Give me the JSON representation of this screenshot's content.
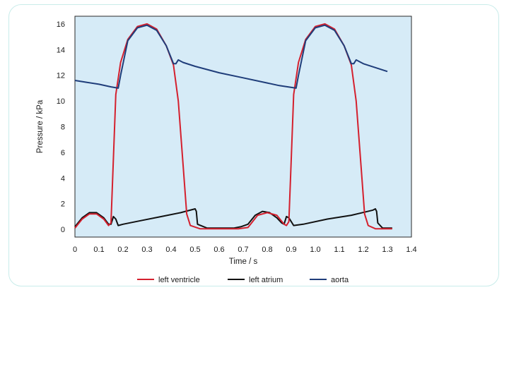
{
  "chart_data": {
    "type": "line",
    "xlabel": "Time / s",
    "ylabel": "Pressure / kPa",
    "xlim": [
      0,
      1.4
    ],
    "ylim": [
      -0.6,
      16.6
    ],
    "xticks": [
      "0",
      "0.1",
      "0.2",
      "0.3",
      "0.4",
      "0.5",
      "0.6",
      "0.7",
      "0.8",
      "0.9",
      "1.0",
      "1.1",
      "1.2",
      "1.3",
      "1.4"
    ],
    "yticks": [
      "0",
      "2",
      "4",
      "6",
      "8",
      "10",
      "12",
      "14",
      "16"
    ],
    "background": "#d6ebf7",
    "legend_position": "bottom",
    "series": [
      {
        "name": "left ventricle",
        "color": "#d4202e",
        "points": [
          [
            0.0,
            0.1
          ],
          [
            0.03,
            0.8
          ],
          [
            0.06,
            1.2
          ],
          [
            0.09,
            1.2
          ],
          [
            0.12,
            0.8
          ],
          [
            0.14,
            0.3
          ],
          [
            0.15,
            0.5
          ],
          [
            0.16,
            5.5
          ],
          [
            0.17,
            10.5
          ],
          [
            0.19,
            13.0
          ],
          [
            0.22,
            14.8
          ],
          [
            0.26,
            15.8
          ],
          [
            0.3,
            16.0
          ],
          [
            0.34,
            15.6
          ],
          [
            0.38,
            14.3
          ],
          [
            0.41,
            12.8
          ],
          [
            0.43,
            10.0
          ],
          [
            0.45,
            5.0
          ],
          [
            0.465,
            1.2
          ],
          [
            0.48,
            0.3
          ],
          [
            0.52,
            0.05
          ],
          [
            0.6,
            0.05
          ],
          [
            0.68,
            0.05
          ],
          [
            0.72,
            0.15
          ],
          [
            0.76,
            1.1
          ],
          [
            0.8,
            1.3
          ],
          [
            0.84,
            1.1
          ],
          [
            0.87,
            0.4
          ],
          [
            0.88,
            0.3
          ],
          [
            0.89,
            0.6
          ],
          [
            0.9,
            5.5
          ],
          [
            0.91,
            10.5
          ],
          [
            0.93,
            13.0
          ],
          [
            0.96,
            14.8
          ],
          [
            1.0,
            15.8
          ],
          [
            1.04,
            16.0
          ],
          [
            1.08,
            15.6
          ],
          [
            1.12,
            14.3
          ],
          [
            1.15,
            12.8
          ],
          [
            1.17,
            10.0
          ],
          [
            1.19,
            5.0
          ],
          [
            1.205,
            1.2
          ],
          [
            1.22,
            0.3
          ],
          [
            1.25,
            0.05
          ],
          [
            1.3,
            0.05
          ],
          [
            1.32,
            0.05
          ]
        ]
      },
      {
        "name": "left atrium",
        "color": "#111111",
        "points": [
          [
            0.0,
            0.2
          ],
          [
            0.03,
            0.9
          ],
          [
            0.06,
            1.3
          ],
          [
            0.09,
            1.3
          ],
          [
            0.12,
            0.9
          ],
          [
            0.14,
            0.4
          ],
          [
            0.15,
            0.4
          ],
          [
            0.16,
            1.0
          ],
          [
            0.17,
            0.8
          ],
          [
            0.18,
            0.3
          ],
          [
            0.2,
            0.4
          ],
          [
            0.28,
            0.7
          ],
          [
            0.36,
            1.0
          ],
          [
            0.44,
            1.3
          ],
          [
            0.5,
            1.6
          ],
          [
            0.505,
            1.4
          ],
          [
            0.51,
            0.4
          ],
          [
            0.55,
            0.1
          ],
          [
            0.6,
            0.1
          ],
          [
            0.66,
            0.1
          ],
          [
            0.69,
            0.2
          ],
          [
            0.72,
            0.4
          ],
          [
            0.75,
            1.1
          ],
          [
            0.78,
            1.4
          ],
          [
            0.81,
            1.3
          ],
          [
            0.84,
            0.9
          ],
          [
            0.86,
            0.5
          ],
          [
            0.87,
            0.4
          ],
          [
            0.88,
            1.0
          ],
          [
            0.89,
            0.9
          ],
          [
            0.91,
            0.3
          ],
          [
            0.95,
            0.4
          ],
          [
            1.05,
            0.8
          ],
          [
            1.15,
            1.1
          ],
          [
            1.24,
            1.5
          ],
          [
            1.25,
            1.6
          ],
          [
            1.255,
            1.4
          ],
          [
            1.26,
            0.5
          ],
          [
            1.28,
            0.1
          ],
          [
            1.32,
            0.1
          ]
        ]
      },
      {
        "name": "aorta",
        "color": "#1f3d7a",
        "points": [
          [
            0.0,
            11.6
          ],
          [
            0.05,
            11.45
          ],
          [
            0.1,
            11.3
          ],
          [
            0.15,
            11.1
          ],
          [
            0.18,
            11.0
          ],
          [
            0.19,
            12.0
          ],
          [
            0.22,
            14.7
          ],
          [
            0.26,
            15.7
          ],
          [
            0.3,
            15.9
          ],
          [
            0.34,
            15.5
          ],
          [
            0.38,
            14.3
          ],
          [
            0.41,
            12.9
          ],
          [
            0.42,
            12.9
          ],
          [
            0.43,
            13.2
          ],
          [
            0.45,
            13.0
          ],
          [
            0.5,
            12.7
          ],
          [
            0.6,
            12.2
          ],
          [
            0.7,
            11.8
          ],
          [
            0.8,
            11.4
          ],
          [
            0.85,
            11.2
          ],
          [
            0.92,
            11.0
          ],
          [
            0.93,
            12.0
          ],
          [
            0.96,
            14.7
          ],
          [
            1.0,
            15.7
          ],
          [
            1.04,
            15.9
          ],
          [
            1.08,
            15.5
          ],
          [
            1.12,
            14.3
          ],
          [
            1.15,
            12.9
          ],
          [
            1.16,
            12.9
          ],
          [
            1.17,
            13.2
          ],
          [
            1.2,
            12.9
          ],
          [
            1.25,
            12.6
          ],
          [
            1.3,
            12.3
          ]
        ]
      }
    ]
  }
}
